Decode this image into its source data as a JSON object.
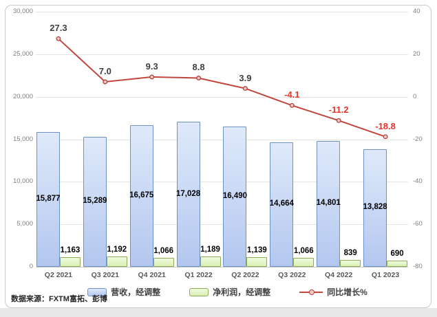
{
  "chart_data": {
    "type": "combo",
    "categories": [
      "Q2 2021",
      "Q3 2021",
      "Q4 2021",
      "Q1 2022",
      "Q2 2022",
      "Q3 2022",
      "Q4 2022",
      "Q1 2023"
    ],
    "series": [
      {
        "name": "营收，经调整",
        "type": "bar",
        "axis": "left",
        "values": [
          15877,
          15289,
          16675,
          17028,
          16490,
          14664,
          14801,
          13828
        ],
        "labels": [
          "15,877",
          "15,289",
          "16,675",
          "17,028",
          "16,490",
          "14,664",
          "14,801",
          "13,828"
        ]
      },
      {
        "name": "净利润，经调整",
        "type": "bar",
        "axis": "left",
        "values": [
          1163,
          1192,
          1066,
          1189,
          1139,
          1066,
          839,
          690
        ],
        "labels": [
          "1,163",
          "1,192",
          "1,066",
          "1,189",
          "1,139",
          "1,066",
          "839",
          "690"
        ]
      },
      {
        "name": "同比增长%",
        "type": "line",
        "axis": "right",
        "values": [
          27.3,
          7.0,
          9.3,
          8.8,
          3.9,
          -4.1,
          -11.2,
          -18.8
        ],
        "labels": [
          "27.3",
          "7.0",
          "9.3",
          "8.8",
          "3.9",
          "-4.1",
          "-11.2",
          "-18.8"
        ]
      }
    ],
    "left_axis": {
      "min": 0,
      "max": 30000,
      "step": 5000,
      "ticks": [
        0,
        5000,
        10000,
        15000,
        20000,
        25000,
        30000
      ],
      "tick_labels": [
        "0",
        "5,000",
        "10,000",
        "15,000",
        "20,000",
        "25,000",
        "30,000"
      ]
    },
    "right_axis": {
      "min": -80,
      "max": 40,
      "step": 20,
      "ticks": [
        40,
        20,
        0,
        -20,
        -40,
        -60,
        -80
      ],
      "tick_labels": [
        "40",
        "20",
        "0",
        "-20",
        "-40",
        "-60",
        "-80"
      ]
    },
    "grid": true,
    "legend_position": "bottom"
  },
  "legend": {
    "items": [
      {
        "label": "营收，经调整",
        "swatch": "blue-bar"
      },
      {
        "label": "净利润，经调整",
        "swatch": "green-bar"
      },
      {
        "label": "同比增长%",
        "swatch": "red-line"
      }
    ]
  },
  "source_note": "数据来源：FXTM富拓、彭博",
  "colors": {
    "revenue_fill_top": "#dfe9fa",
    "revenue_fill_bottom": "#b3c7ef",
    "revenue_border": "#6d92c3",
    "profit_fill_top": "#effbdf",
    "profit_fill_bottom": "#d9efb4",
    "profit_border": "#8fa955",
    "line": "#c0463d",
    "marker_fill": "#f2cac6",
    "marker_stroke": "#b2423a",
    "line_label_positive": "#3f3f3f",
    "line_label_negative": "#e5352b",
    "axis_text": "#7f7f7f",
    "x_label_text": "#595959",
    "gridline": "#e4e4e4",
    "zero_line": "#c6c6c6",
    "frame_border": "#c9c9c9"
  }
}
